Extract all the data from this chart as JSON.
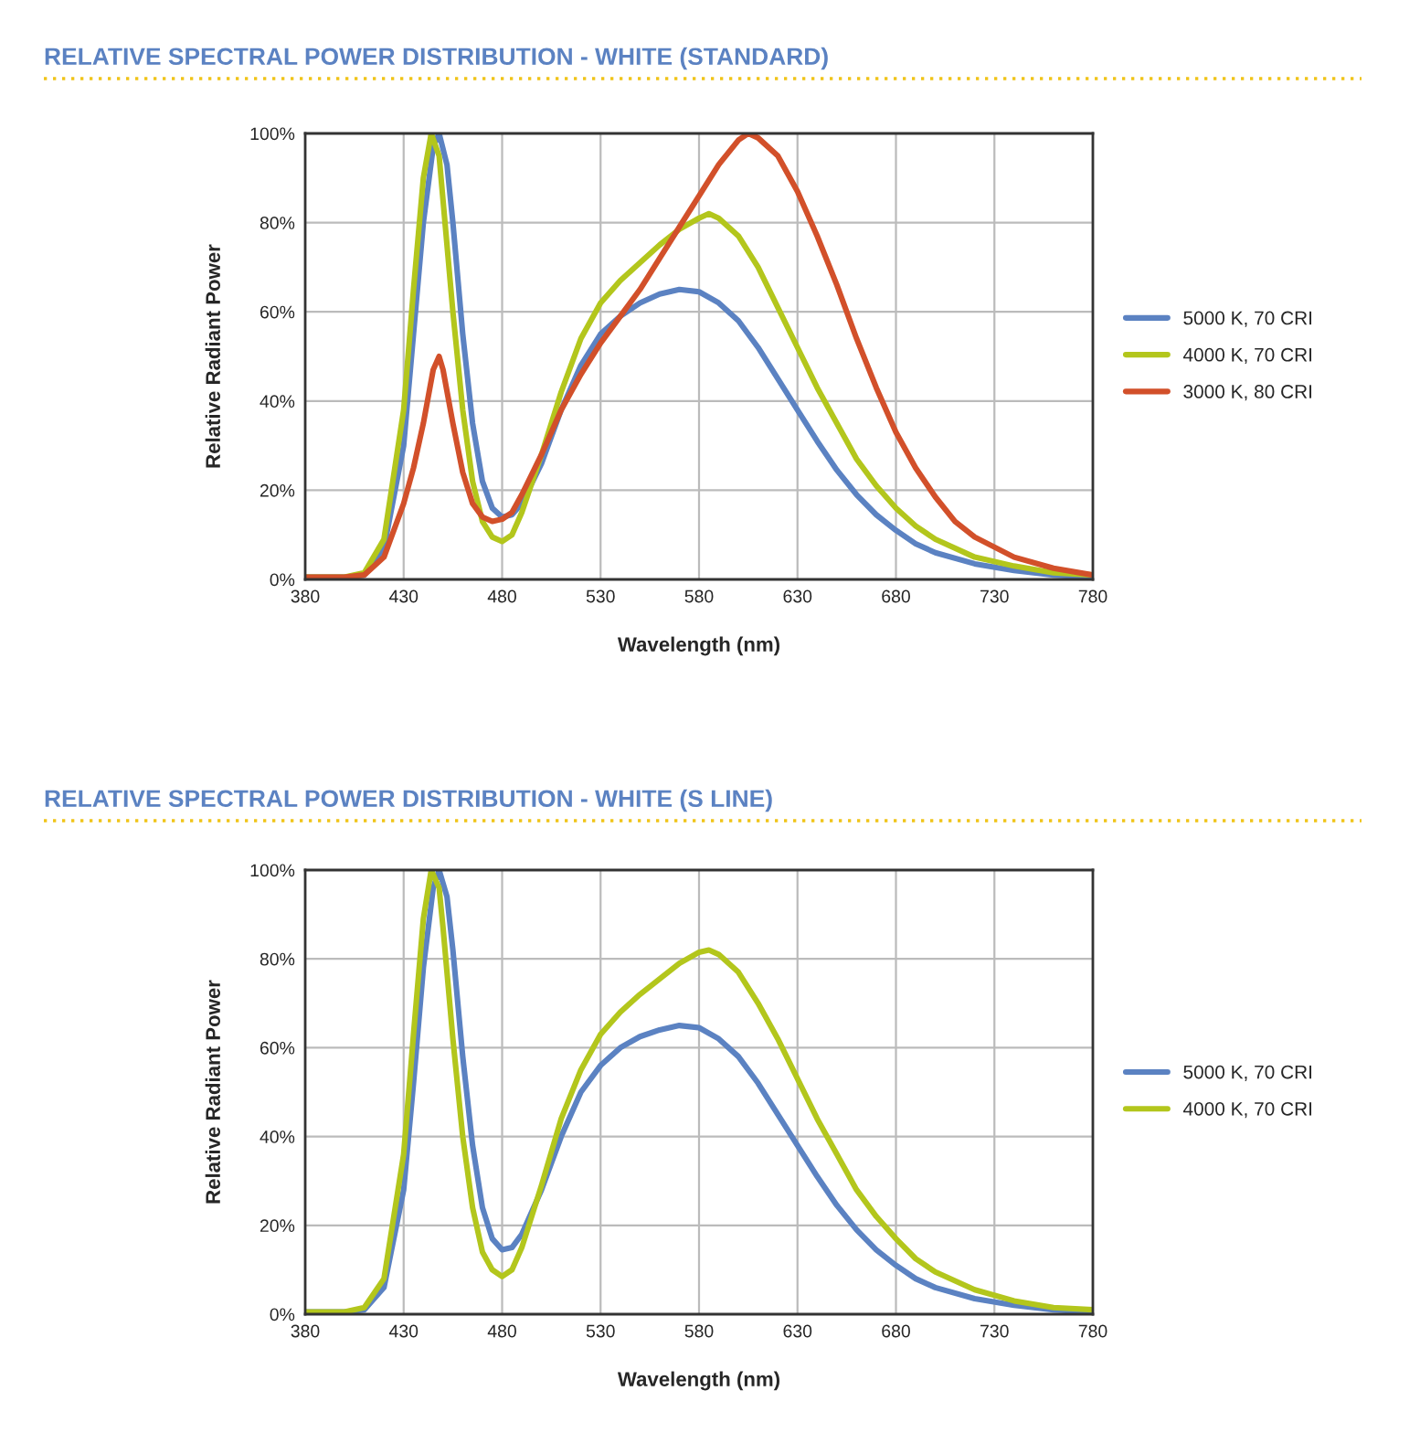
{
  "chart_data": [
    {
      "type": "line",
      "title": "RELATIVE SPECTRAL POWER DISTRIBUTION - WHITE (STANDARD)",
      "xlabel": "Wavelength (nm)",
      "ylabel": "Relative Radiant Power",
      "xlim": [
        380,
        780
      ],
      "xticks": [
        380,
        430,
        480,
        530,
        580,
        630,
        680,
        730,
        780
      ],
      "ylim": [
        0,
        100
      ],
      "yticks": [
        {
          "value": 0,
          "label": "0%"
        },
        {
          "value": 20,
          "label": "20%"
        },
        {
          "value": 40,
          "label": "40%"
        },
        {
          "value": 60,
          "label": "60%"
        },
        {
          "value": 80,
          "label": "80%"
        },
        {
          "value": 100,
          "label": "100%"
        }
      ],
      "grid": true,
      "legend": "right",
      "series": [
        {
          "name": "5000 K, 70 CRI",
          "color": "#5b82c2",
          "x": [
            380,
            400,
            410,
            420,
            430,
            435,
            440,
            445,
            448,
            452,
            455,
            460,
            465,
            470,
            475,
            480,
            485,
            490,
            500,
            510,
            520,
            530,
            540,
            550,
            560,
            570,
            580,
            590,
            600,
            610,
            620,
            630,
            640,
            650,
            660,
            670,
            680,
            690,
            700,
            720,
            740,
            760,
            780
          ],
          "values": [
            0.5,
            0.5,
            1,
            7,
            30,
            55,
            80,
            97,
            100,
            93,
            80,
            55,
            35,
            22,
            16,
            14,
            14.5,
            17,
            26,
            38,
            48,
            55,
            59,
            62,
            64,
            65,
            64.5,
            62,
            58,
            52,
            45,
            38,
            31,
            24.5,
            19,
            14.5,
            11,
            8,
            6,
            3.5,
            2,
            1,
            0.5
          ]
        },
        {
          "name": "4000 K, 70 CRI",
          "color": "#b3c61c",
          "x": [
            380,
            400,
            410,
            420,
            430,
            435,
            440,
            444,
            448,
            450,
            455,
            460,
            465,
            470,
            475,
            480,
            485,
            490,
            500,
            510,
            520,
            530,
            540,
            550,
            560,
            570,
            580,
            585,
            590,
            600,
            610,
            620,
            630,
            640,
            650,
            660,
            670,
            680,
            690,
            700,
            720,
            740,
            760,
            780
          ],
          "values": [
            0.5,
            0.5,
            1.5,
            9,
            38,
            65,
            90,
            100,
            95,
            85,
            60,
            38,
            22,
            13,
            9.5,
            8.5,
            10,
            15,
            28,
            42,
            54,
            62,
            67,
            71,
            75,
            78.5,
            81,
            82,
            81,
            77,
            70,
            61,
            52,
            43,
            35,
            27,
            21,
            16,
            12,
            9,
            5,
            3,
            1.5,
            1
          ]
        },
        {
          "name": "3000 K, 80 CRI",
          "color": "#d2502a",
          "x": [
            380,
            400,
            410,
            420,
            430,
            435,
            440,
            445,
            448,
            450,
            455,
            460,
            465,
            470,
            475,
            480,
            485,
            490,
            500,
            510,
            520,
            530,
            540,
            550,
            560,
            570,
            580,
            590,
            600,
            605,
            610,
            620,
            630,
            640,
            650,
            660,
            670,
            680,
            690,
            700,
            710,
            720,
            740,
            760,
            780
          ],
          "values": [
            0.5,
            0.5,
            1,
            5,
            17,
            25,
            35,
            47,
            50,
            47,
            35,
            24,
            17,
            14,
            13,
            13.5,
            15,
            19,
            28,
            38,
            46,
            53,
            59,
            65,
            72,
            79,
            86,
            93,
            98.5,
            100,
            99,
            95,
            87,
            77,
            66,
            54,
            43,
            33,
            25,
            18.5,
            13,
            9.5,
            5,
            2.5,
            1
          ]
        }
      ]
    },
    {
      "type": "line",
      "title": "RELATIVE SPECTRAL POWER DISTRIBUTION - WHITE (S LINE)",
      "xlabel": "Wavelength (nm)",
      "ylabel": "Relative Radiant Power",
      "xlim": [
        380,
        780
      ],
      "xticks": [
        380,
        430,
        480,
        530,
        580,
        630,
        680,
        730,
        780
      ],
      "ylim": [
        0,
        100
      ],
      "yticks": [
        {
          "value": 0,
          "label": "0%"
        },
        {
          "value": 20,
          "label": "20%"
        },
        {
          "value": 40,
          "label": "40%"
        },
        {
          "value": 60,
          "label": "60%"
        },
        {
          "value": 80,
          "label": "80%"
        },
        {
          "value": 100,
          "label": "100%"
        }
      ],
      "grid": true,
      "legend": "right",
      "series": [
        {
          "name": "5000 K, 70 CRI",
          "color": "#5b82c2",
          "x": [
            380,
            400,
            410,
            420,
            430,
            435,
            440,
            445,
            448,
            452,
            455,
            460,
            465,
            470,
            475,
            480,
            485,
            490,
            500,
            510,
            520,
            530,
            540,
            550,
            560,
            570,
            580,
            590,
            600,
            610,
            620,
            630,
            640,
            650,
            660,
            670,
            680,
            690,
            700,
            720,
            740,
            760,
            780
          ],
          "values": [
            0.5,
            0.5,
            1,
            6,
            28,
            52,
            78,
            96,
            100,
            94,
            82,
            58,
            38,
            24,
            17,
            14.5,
            15,
            18,
            28,
            40,
            50,
            56,
            60,
            62.5,
            64,
            65,
            64.5,
            62,
            58,
            52,
            45,
            38,
            31,
            24.5,
            19,
            14.5,
            11,
            8,
            6,
            3.5,
            2,
            1,
            0.5
          ]
        },
        {
          "name": "4000 K, 70 CRI",
          "color": "#b3c61c",
          "x": [
            380,
            400,
            410,
            420,
            430,
            435,
            440,
            444,
            448,
            450,
            455,
            460,
            465,
            470,
            475,
            480,
            485,
            490,
            500,
            510,
            520,
            530,
            540,
            550,
            560,
            570,
            580,
            585,
            590,
            600,
            610,
            620,
            630,
            640,
            650,
            660,
            670,
            680,
            690,
            700,
            720,
            740,
            760,
            780
          ],
          "values": [
            0.5,
            0.5,
            1.5,
            8,
            36,
            63,
            89,
            100,
            96,
            87,
            62,
            40,
            24,
            14,
            10,
            8.5,
            10,
            15,
            29,
            44,
            55,
            63,
            68,
            72,
            75.5,
            79,
            81.5,
            82,
            81,
            77,
            70,
            62,
            53,
            44,
            36,
            28,
            22,
            17,
            12.5,
            9.5,
            5.5,
            3,
            1.5,
            1
          ]
        }
      ]
    }
  ]
}
